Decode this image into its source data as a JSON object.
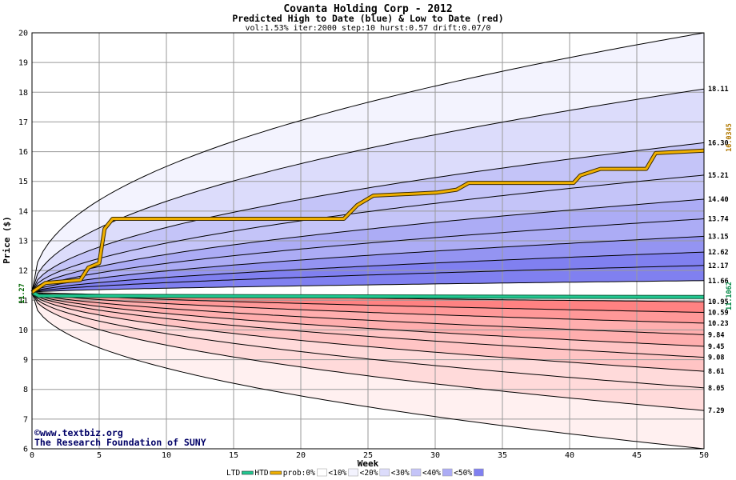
{
  "chart_data": {
    "type": "area",
    "title": "Covanta Holding Corp - 2012",
    "subtitle": "Predicted High to Date (blue) &  Low to Date (red)",
    "params": "vol:1.53% iter:2000 step:10 hurst:0.57 drift:0.07/0",
    "xlabel": "Week",
    "ylabel": "Price ($)",
    "xlim": [
      0,
      50
    ],
    "ylim": [
      6,
      20
    ],
    "x_ticks": [
      0,
      5,
      10,
      15,
      20,
      25,
      30,
      35,
      40,
      45,
      50
    ],
    "y_ticks": [
      6,
      7,
      8,
      9,
      10,
      11,
      12,
      13,
      14,
      15,
      16,
      17,
      18,
      19,
      20
    ],
    "grid": true,
    "start_price": 11.27,
    "start_label": "11.27",
    "htd_final": 16.0345,
    "htd_final_label": "16.0345",
    "ltd_final": 11.1062,
    "ltd_final_label": "11.1062",
    "high_quantile_labels": [
      "18.11",
      "16.30",
      "15.21",
      "14.40",
      "13.74",
      "13.15",
      "12.62",
      "12.17",
      "11.66"
    ],
    "high_quantile_finals": [
      18.11,
      16.3,
      15.21,
      14.4,
      13.74,
      13.15,
      12.62,
      12.17,
      11.66
    ],
    "low_quantile_labels": [
      "10.95",
      "10.59",
      "10.23",
      "9.84",
      "9.45",
      "9.08",
      "8.61",
      "8.05",
      "7.29"
    ],
    "low_quantile_finals": [
      10.95,
      10.59,
      10.23,
      9.84,
      9.45,
      9.08,
      8.61,
      8.05,
      7.29
    ],
    "extreme_high_final": 20.0,
    "extreme_low_final": 6.0,
    "htd_series": [
      [
        0,
        11.27
      ],
      [
        1,
        11.58
      ],
      [
        3.6,
        11.68
      ],
      [
        4.2,
        12.1
      ],
      [
        5,
        12.25
      ],
      [
        5.4,
        13.4
      ],
      [
        6,
        13.74
      ],
      [
        23.2,
        13.74
      ],
      [
        24.2,
        14.2
      ],
      [
        25.4,
        14.52
      ],
      [
        30.1,
        14.62
      ],
      [
        31.6,
        14.72
      ],
      [
        32.5,
        14.95
      ],
      [
        40.3,
        14.95
      ],
      [
        40.8,
        15.2
      ],
      [
        42.3,
        15.42
      ],
      [
        45.7,
        15.42
      ],
      [
        46.4,
        15.95
      ],
      [
        50,
        16.0345
      ]
    ],
    "ltd_series": [
      [
        0,
        11.27
      ],
      [
        0.5,
        11.15
      ],
      [
        50,
        11.1062
      ]
    ],
    "colors": {
      "htd": "#f0b000",
      "ltd": "#20c890",
      "blue_bands": [
        "#f3f3fe",
        "#dcdcfb",
        "#c4c4f8",
        "#acacf5",
        "#9494f2",
        "#8080f0"
      ],
      "red_bands": [
        "#fff0f0",
        "#ffdada",
        "#ffc4c4",
        "#ffaeae",
        "#ff9898",
        "#ff8282"
      ],
      "htd_label": "#b07800",
      "ltd_label": "#008844",
      "start_label": "#006600"
    },
    "watermark": [
      "©www.textbiz.org",
      "The Research Foundation of SUNY"
    ],
    "legend": [
      {
        "label": "LTD",
        "swatch": "#20c890",
        "kind": "line"
      },
      {
        "label": "HTD",
        "swatch": "#f0b000",
        "kind": "line"
      },
      {
        "label": "prob:0%",
        "swatch": "#ffffff",
        "kind": "box"
      },
      {
        "label": "<10%",
        "swatch": "#f3f3fe",
        "kind": "box"
      },
      {
        "label": "<20%",
        "swatch": "#dcdcfb",
        "kind": "box"
      },
      {
        "label": "<30%",
        "swatch": "#c4c4f8",
        "kind": "box"
      },
      {
        "label": "<40%",
        "swatch": "#acacf5",
        "kind": "box"
      },
      {
        "label": "<50%",
        "swatch": "#8080f0",
        "kind": "box"
      }
    ]
  }
}
